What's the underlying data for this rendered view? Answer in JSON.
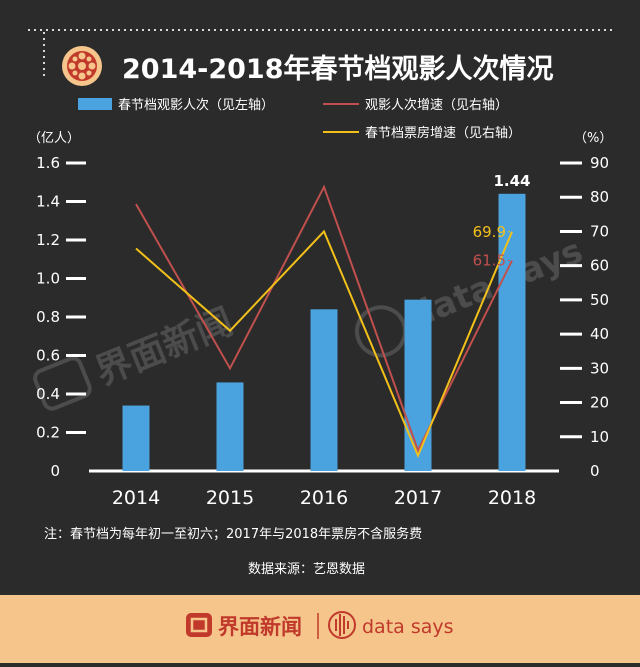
{
  "title": "2014-2018年春节档观影人次情况",
  "legend": {
    "bar": "春节档观影人次（见左轴）",
    "line_red": "观影人次增速（见右轴）",
    "line_yellow": "春节档票房增速（见右轴）"
  },
  "left_axis_unit": "（亿人）",
  "right_axis_unit": "（%）",
  "note": "注：春节档为每年初一至初六；2017年与2018年票房不含服务费",
  "source": "数据来源：艺恩数据",
  "watermark": {
    "cn": "界面新闻",
    "en": "data says"
  },
  "footer": {
    "brand_cn": "界面新闻",
    "brand_en": "data says"
  },
  "colors": {
    "bar": "#4aa3df",
    "red_line": "#c0504d",
    "yellow_line": "#f2c01b",
    "accent": "#c0392b"
  },
  "chart_data": {
    "type": "bar",
    "categories": [
      "2014",
      "2015",
      "2016",
      "2017",
      "2018"
    ],
    "series": [
      {
        "name": "春节档观影人次（见左轴）",
        "type": "bar",
        "axis": "left",
        "values": [
          0.34,
          0.46,
          0.84,
          0.89,
          1.44
        ]
      },
      {
        "name": "观影人次增速（见右轴）",
        "type": "line",
        "axis": "right",
        "values": [
          78,
          30,
          83,
          6,
          61.5
        ]
      },
      {
        "name": "春节档票房增速（见右轴）",
        "type": "line",
        "axis": "right",
        "values": [
          65,
          41,
          70,
          4.5,
          69.9
        ]
      }
    ],
    "left_axis": {
      "ylim": [
        0,
        1.6
      ],
      "ticks": [
        "0",
        "0.2",
        "0.4",
        "0.6",
        "0.8",
        "1.0",
        "1.2",
        "1.4",
        "1.6"
      ]
    },
    "right_axis": {
      "ylim": [
        0,
        90
      ],
      "ticks": [
        "0",
        "10",
        "20",
        "30",
        "40",
        "50",
        "60",
        "70",
        "80",
        "90"
      ]
    },
    "data_labels": {
      "bar_2018": "1.44",
      "red_2018": "61.5",
      "yellow_2018": "69.9"
    },
    "legend_position": "top"
  }
}
